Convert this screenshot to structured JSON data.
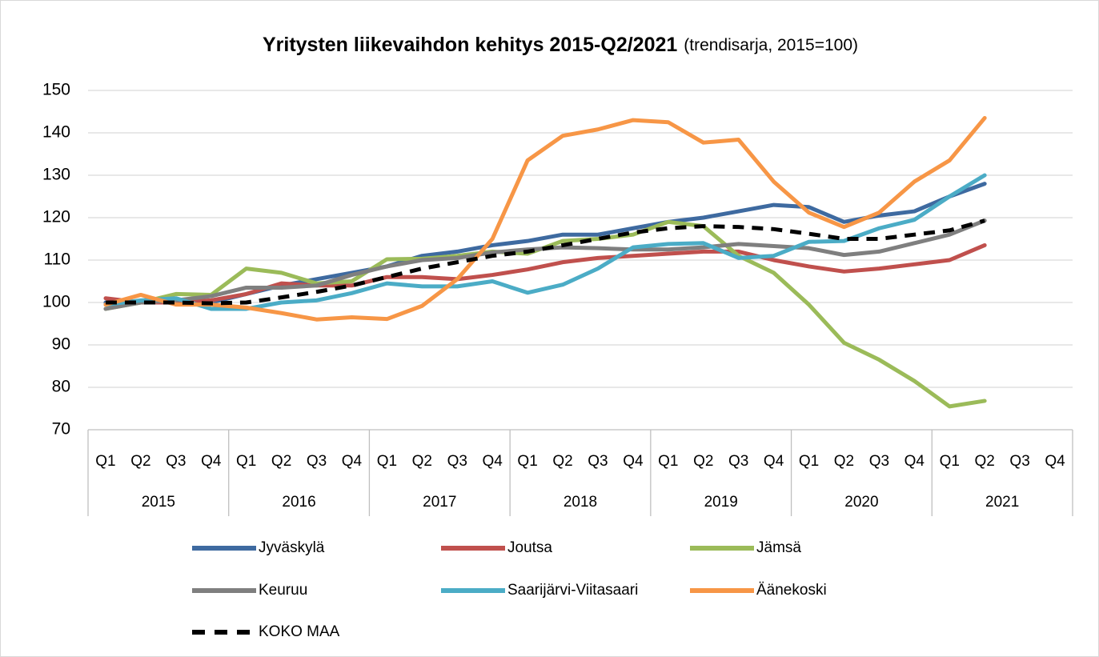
{
  "chart_data": {
    "type": "line",
    "title": "Yritysten liikevaihdon kehitys 2015-Q2/2021",
    "subtitle": "(trendisarja, 2015=100)",
    "categories": [
      "Q1",
      "Q2",
      "Q3",
      "Q4",
      "Q1",
      "Q2",
      "Q3",
      "Q4",
      "Q1",
      "Q2",
      "Q3",
      "Q4",
      "Q1",
      "Q2",
      "Q3",
      "Q4",
      "Q1",
      "Q2",
      "Q3",
      "Q4",
      "Q1",
      "Q2",
      "Q3",
      "Q4",
      "Q1",
      "Q2",
      "Q3",
      "Q4"
    ],
    "years": [
      "2015",
      "2016",
      "2017",
      "2018",
      "2019",
      "2020",
      "2021"
    ],
    "ylim": [
      70,
      150
    ],
    "yticks": [
      70,
      80,
      90,
      100,
      110,
      120,
      130,
      140,
      150
    ],
    "grid": true,
    "series": [
      {
        "name": "Jyväskylä",
        "color": "#3e6aa0",
        "values": [
          100,
          100,
          100.5,
          100,
          102,
          104,
          105.5,
          107,
          108.5,
          111,
          112,
          113.5,
          114.5,
          116,
          116,
          117.5,
          119,
          120,
          121.5,
          123,
          122.5,
          119,
          120.5,
          121.5,
          125,
          128,
          null,
          null
        ]
      },
      {
        "name": "Joutsa",
        "color": "#c0504d",
        "values": [
          101,
          100,
          100,
          100.5,
          102,
          104.5,
          104,
          104,
          106,
          106,
          105.5,
          106.5,
          107.8,
          109.5,
          110.5,
          111,
          111.5,
          112,
          112,
          110,
          108.5,
          107.3,
          108,
          109,
          110,
          113.5,
          null,
          null
        ]
      },
      {
        "name": "Jämsä",
        "color": "#9bbb59",
        "values": [
          98.5,
          100,
          102,
          101.8,
          108,
          107,
          104.5,
          105,
          110.2,
          110.3,
          111,
          112,
          111.5,
          114.5,
          115,
          116,
          119,
          118,
          111,
          107,
          99.5,
          90.5,
          86.5,
          81.5,
          75.5,
          76.8,
          null,
          null
        ]
      },
      {
        "name": "Keuruu",
        "color": "#7f7f7f",
        "values": [
          98.5,
          100,
          100.5,
          101.5,
          103.5,
          103.5,
          104,
          106.5,
          108.5,
          110,
          110.5,
          111.8,
          112.5,
          113,
          112.8,
          112.5,
          112.5,
          113,
          113.8,
          113.3,
          112.8,
          111.2,
          112,
          114,
          116,
          119.3,
          null,
          null
        ]
      },
      {
        "name": "Saarijärvi-Viitasaari",
        "color": "#4bacc6",
        "values": [
          99.5,
          100.5,
          101,
          98.5,
          98.5,
          100,
          100.5,
          102.2,
          104.5,
          103.8,
          103.8,
          105,
          102.3,
          104.2,
          108,
          113,
          113.8,
          114,
          110.5,
          111,
          114.3,
          114.5,
          117.5,
          119.5,
          125,
          130,
          null,
          null
        ]
      },
      {
        "name": "Äänekoski",
        "color": "#f79646",
        "values": [
          99.5,
          101.8,
          99.5,
          99.5,
          98.8,
          97.5,
          96,
          96.5,
          96.1,
          99.2,
          105.5,
          115,
          133.5,
          139.3,
          140.8,
          143,
          142.5,
          137.7,
          138.4,
          128.5,
          121.2,
          117.8,
          121.2,
          128.5,
          133.5,
          143.5,
          null,
          null
        ]
      },
      {
        "name": "KOKO MAA",
        "color": "#000000",
        "dashed": true,
        "values": [
          100,
          100,
          100,
          99.8,
          100,
          101.2,
          102.5,
          104,
          106,
          108,
          109.5,
          111,
          112,
          113.5,
          115,
          116.5,
          117.5,
          118,
          117.8,
          117.3,
          116.2,
          115,
          115,
          116,
          117,
          119.3,
          null,
          null
        ]
      }
    ]
  }
}
